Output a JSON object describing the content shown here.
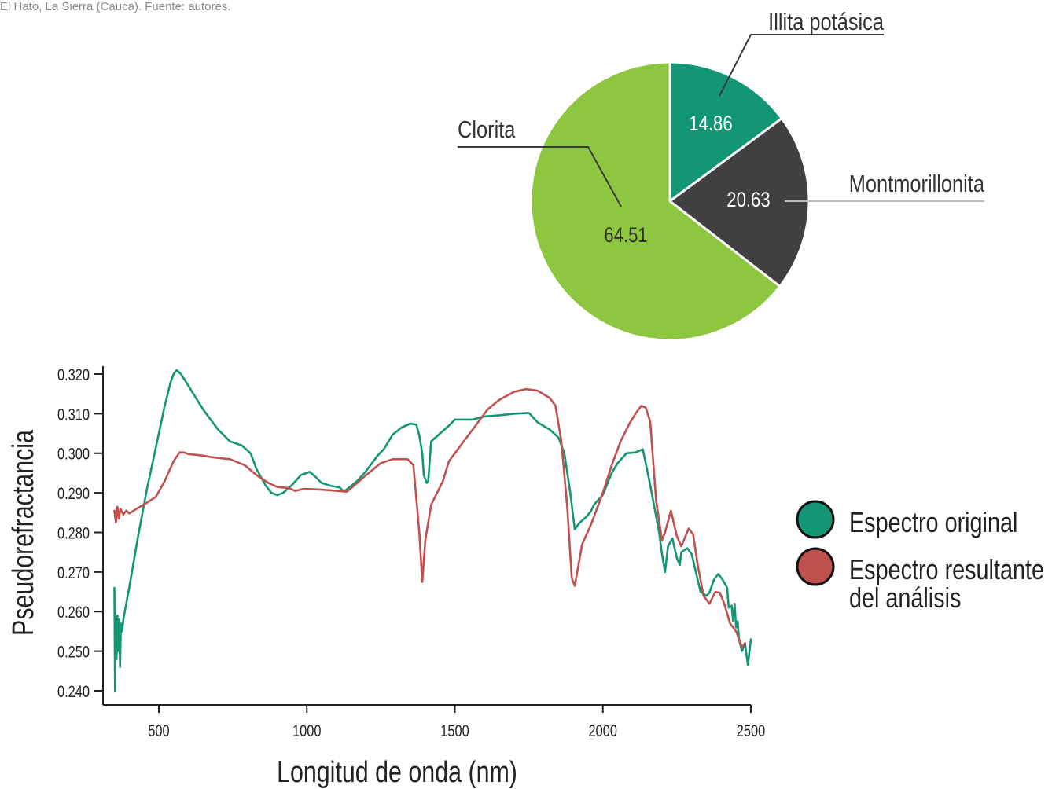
{
  "caption": "El Hato, La Sierra (Cauca). Fuente: autores.",
  "chart_data": [
    {
      "type": "pie",
      "slices": [
        {
          "label": "Illita potásica",
          "value": 14.86,
          "value_label": "14.86",
          "color": "#129673"
        },
        {
          "label": "Montmorillonita",
          "value": 20.63,
          "value_label": "20.63",
          "color": "#404042"
        },
        {
          "label": "Clorita",
          "value": 64.51,
          "value_label": "64.51",
          "color": "#8dc63f"
        }
      ]
    },
    {
      "type": "line",
      "xlabel": "Longitud de onda (nm)",
      "ylabel": "Pseudorefractancia",
      "xlim": [
        330,
        2520
      ],
      "ylim": [
        0.238,
        0.322
      ],
      "xticks": [
        500,
        1000,
        1500,
        2000,
        2500
      ],
      "xtick_labels": [
        "500",
        "1000",
        "1500",
        "2000",
        "2500"
      ],
      "yticks": [
        0.24,
        0.25,
        0.26,
        0.27,
        0.28,
        0.29,
        0.3,
        0.31,
        0.32
      ],
      "ytick_labels": [
        "0.240",
        "0.250",
        "0.260",
        "0.270",
        "0.280",
        "0.290",
        "0.300",
        "0.310",
        "0.320"
      ],
      "grid": false,
      "legend": "right",
      "series": [
        {
          "name": "Espectro original",
          "color": "#129673",
          "points": [
            [
              350,
              0.266
            ],
            [
              352,
              0.24
            ],
            [
              355,
              0.258
            ],
            [
              357,
              0.248
            ],
            [
              360,
              0.259
            ],
            [
              363,
              0.25
            ],
            [
              366,
              0.258
            ],
            [
              369,
              0.246
            ],
            [
              372,
              0.257
            ],
            [
              376,
              0.255
            ],
            [
              380,
              0.258
            ],
            [
              400,
              0.266
            ],
            [
              430,
              0.279
            ],
            [
              460,
              0.291
            ],
            [
              480,
              0.298
            ],
            [
              500,
              0.305
            ],
            [
              520,
              0.312
            ],
            [
              540,
              0.318
            ],
            [
              550,
              0.32
            ],
            [
              560,
              0.321
            ],
            [
              575,
              0.32
            ],
            [
              600,
              0.317
            ],
            [
              650,
              0.311
            ],
            [
              700,
              0.306
            ],
            [
              740,
              0.303
            ],
            [
              780,
              0.302
            ],
            [
              810,
              0.3
            ],
            [
              830,
              0.296
            ],
            [
              860,
              0.292
            ],
            [
              880,
              0.29
            ],
            [
              900,
              0.2894
            ],
            [
              920,
              0.29
            ],
            [
              950,
              0.292
            ],
            [
              980,
              0.2945
            ],
            [
              1010,
              0.2953
            ],
            [
              1030,
              0.294
            ],
            [
              1050,
              0.2925
            ],
            [
              1080,
              0.2918
            ],
            [
              1110,
              0.2914
            ],
            [
              1125,
              0.2903
            ],
            [
              1140,
              0.2912
            ],
            [
              1170,
              0.293
            ],
            [
              1200,
              0.2955
            ],
            [
              1240,
              0.2995
            ],
            [
              1260,
              0.301
            ],
            [
              1290,
              0.3047
            ],
            [
              1320,
              0.3065
            ],
            [
              1350,
              0.3075
            ],
            [
              1370,
              0.3072
            ],
            [
              1380,
              0.3045
            ],
            [
              1390,
              0.3
            ],
            [
              1395,
              0.2945
            ],
            [
              1405,
              0.2925
            ],
            [
              1410,
              0.293
            ],
            [
              1420,
              0.303
            ],
            [
              1450,
              0.305
            ],
            [
              1480,
              0.307
            ],
            [
              1500,
              0.3085
            ],
            [
              1560,
              0.3085
            ],
            [
              1600,
              0.3093
            ],
            [
              1650,
              0.3096
            ],
            [
              1700,
              0.31
            ],
            [
              1750,
              0.3102
            ],
            [
              1780,
              0.3078
            ],
            [
              1820,
              0.306
            ],
            [
              1850,
              0.304
            ],
            [
              1870,
              0.3
            ],
            [
              1890,
              0.29
            ],
            [
              1905,
              0.2808
            ],
            [
              1920,
              0.2823
            ],
            [
              1945,
              0.284
            ],
            [
              1960,
              0.2854
            ],
            [
              1970,
              0.287
            ],
            [
              2000,
              0.2895
            ],
            [
              2030,
              0.295
            ],
            [
              2050,
              0.2975
            ],
            [
              2080,
              0.3
            ],
            [
              2110,
              0.3002
            ],
            [
              2135,
              0.301
            ],
            [
              2160,
              0.292
            ],
            [
              2190,
              0.28
            ],
            [
              2200,
              0.2745
            ],
            [
              2210,
              0.27
            ],
            [
              2220,
              0.2765
            ],
            [
              2235,
              0.2785
            ],
            [
              2250,
              0.2735
            ],
            [
              2260,
              0.2718
            ],
            [
              2265,
              0.275
            ],
            [
              2285,
              0.276
            ],
            [
              2300,
              0.2745
            ],
            [
              2330,
              0.265
            ],
            [
              2350,
              0.264
            ],
            [
              2360,
              0.2648
            ],
            [
              2375,
              0.268
            ],
            [
              2390,
              0.2695
            ],
            [
              2405,
              0.268
            ],
            [
              2420,
              0.266
            ],
            [
              2425,
              0.261
            ],
            [
              2435,
              0.2615
            ],
            [
              2440,
              0.2575
            ],
            [
              2445,
              0.262
            ],
            [
              2450,
              0.256
            ],
            [
              2455,
              0.2575
            ],
            [
              2460,
              0.253
            ],
            [
              2470,
              0.25
            ],
            [
              2480,
              0.252
            ],
            [
              2490,
              0.2465
            ],
            [
              2500,
              0.253
            ]
          ]
        },
        {
          "name": "Espectro resultante del análisis",
          "color": "#c0504d",
          "points": [
            [
              350,
              0.2855
            ],
            [
              355,
              0.2825
            ],
            [
              360,
              0.2865
            ],
            [
              365,
              0.2835
            ],
            [
              370,
              0.286
            ],
            [
              380,
              0.2845
            ],
            [
              390,
              0.2855
            ],
            [
              400,
              0.2848
            ],
            [
              430,
              0.2862
            ],
            [
              470,
              0.288
            ],
            [
              490,
              0.289
            ],
            [
              520,
              0.293
            ],
            [
              550,
              0.298
            ],
            [
              570,
              0.3002
            ],
            [
              585,
              0.3002
            ],
            [
              600,
              0.2998
            ],
            [
              640,
              0.2995
            ],
            [
              680,
              0.299
            ],
            [
              740,
              0.2985
            ],
            [
              790,
              0.297
            ],
            [
              830,
              0.2945
            ],
            [
              870,
              0.2925
            ],
            [
              900,
              0.2915
            ],
            [
              940,
              0.2912
            ],
            [
              960,
              0.2905
            ],
            [
              990,
              0.291
            ],
            [
              1050,
              0.2908
            ],
            [
              1100,
              0.2905
            ],
            [
              1135,
              0.2903
            ],
            [
              1170,
              0.2925
            ],
            [
              1200,
              0.2945
            ],
            [
              1250,
              0.2975
            ],
            [
              1290,
              0.2985
            ],
            [
              1340,
              0.2985
            ],
            [
              1360,
              0.297
            ],
            [
              1380,
              0.28
            ],
            [
              1390,
              0.2675
            ],
            [
              1400,
              0.278
            ],
            [
              1420,
              0.287
            ],
            [
              1460,
              0.293
            ],
            [
              1480,
              0.298
            ],
            [
              1530,
              0.303
            ],
            [
              1570,
              0.307
            ],
            [
              1610,
              0.311
            ],
            [
              1650,
              0.3135
            ],
            [
              1700,
              0.3155
            ],
            [
              1740,
              0.3162
            ],
            [
              1780,
              0.3158
            ],
            [
              1820,
              0.314
            ],
            [
              1840,
              0.312
            ],
            [
              1860,
              0.303
            ],
            [
              1880,
              0.286
            ],
            [
              1895,
              0.2685
            ],
            [
              1905,
              0.2665
            ],
            [
              1930,
              0.277
            ],
            [
              1960,
              0.282
            ],
            [
              2000,
              0.29
            ],
            [
              2030,
              0.297
            ],
            [
              2060,
              0.303
            ],
            [
              2090,
              0.3075
            ],
            [
              2110,
              0.31
            ],
            [
              2130,
              0.312
            ],
            [
              2145,
              0.3115
            ],
            [
              2160,
              0.308
            ],
            [
              2180,
              0.288
            ],
            [
              2200,
              0.278
            ],
            [
              2210,
              0.28
            ],
            [
              2230,
              0.2855
            ],
            [
              2250,
              0.279
            ],
            [
              2265,
              0.2765
            ],
            [
              2290,
              0.281
            ],
            [
              2305,
              0.2795
            ],
            [
              2320,
              0.272
            ],
            [
              2340,
              0.264
            ],
            [
              2360,
              0.262
            ],
            [
              2380,
              0.265
            ],
            [
              2395,
              0.2648
            ],
            [
              2410,
              0.262
            ],
            [
              2430,
              0.257
            ],
            [
              2450,
              0.255
            ],
            [
              2470,
              0.251
            ],
            [
              2480,
              0.252
            ]
          ]
        }
      ]
    }
  ]
}
